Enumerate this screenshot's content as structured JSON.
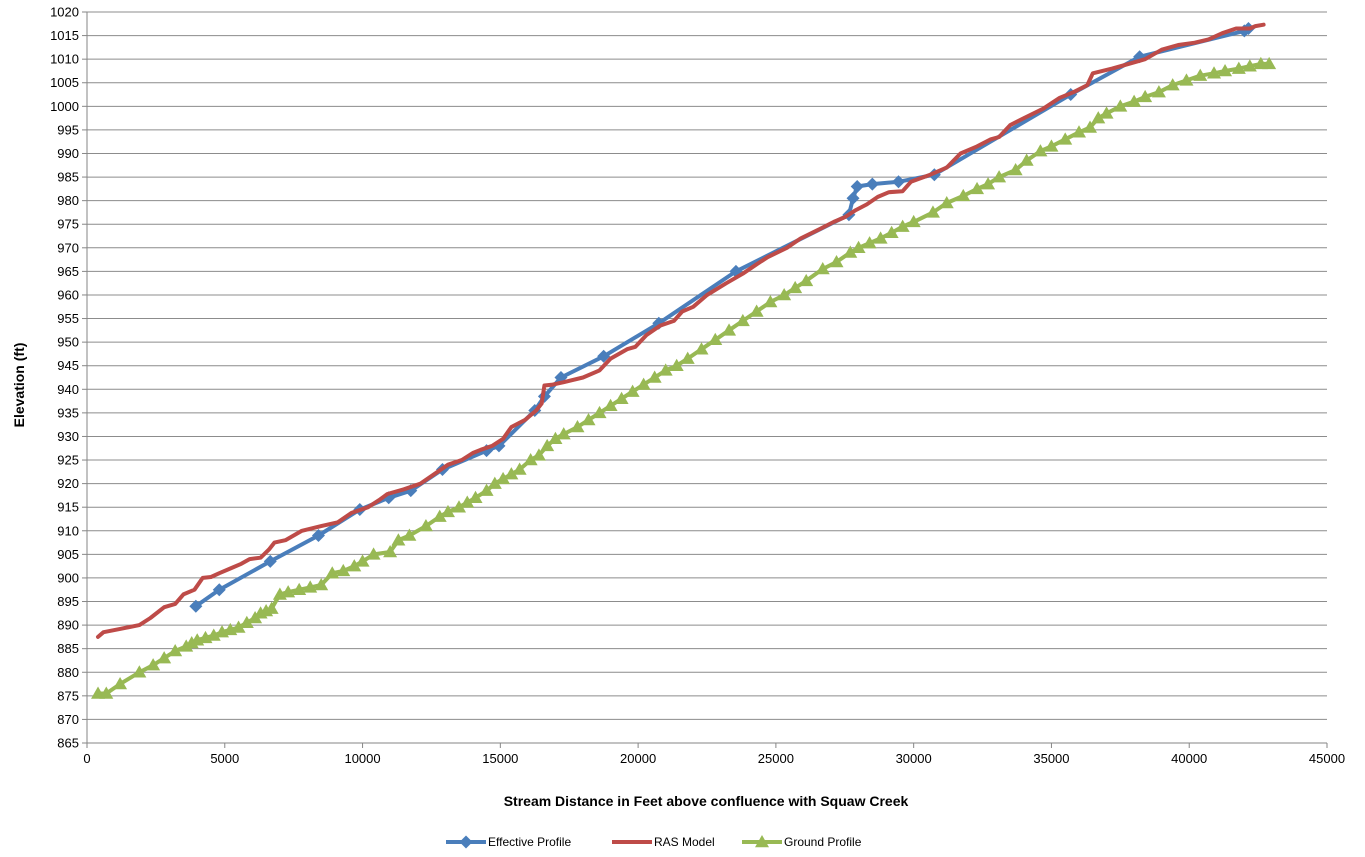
{
  "chart_data": {
    "type": "line",
    "title": "",
    "xlabel": "Stream Distance in Feet above confluence with Squaw Creek",
    "ylabel": "Elevation (ft)",
    "xlim": [
      0,
      45000
    ],
    "ylim": [
      865,
      1020
    ],
    "x_ticks": [
      0,
      5000,
      10000,
      15000,
      20000,
      25000,
      30000,
      35000,
      40000,
      45000
    ],
    "y_ticks": [
      865,
      870,
      875,
      880,
      885,
      890,
      895,
      900,
      905,
      910,
      915,
      920,
      925,
      930,
      935,
      940,
      945,
      950,
      955,
      960,
      965,
      970,
      975,
      980,
      985,
      990,
      995,
      1000,
      1005,
      1010,
      1015,
      1020
    ],
    "grid": "horizontal",
    "legend_position": "bottom",
    "series": [
      {
        "name": "Effective Profile",
        "color": "#4a7ebb",
        "marker": "diamond",
        "points": [
          [
            3950,
            894
          ],
          [
            4800,
            897.5
          ],
          [
            6650,
            903.5
          ],
          [
            8400,
            909
          ],
          [
            9900,
            914.5
          ],
          [
            10950,
            917
          ],
          [
            11750,
            918.5
          ],
          [
            12900,
            923
          ],
          [
            14500,
            927
          ],
          [
            14950,
            928
          ],
          [
            16250,
            935.5
          ],
          [
            16600,
            938.5
          ],
          [
            17200,
            942.5
          ],
          [
            18750,
            947
          ],
          [
            20750,
            954
          ],
          [
            23550,
            965
          ],
          [
            27650,
            977
          ],
          [
            27800,
            980.5
          ],
          [
            27950,
            983
          ],
          [
            28500,
            983.5
          ],
          [
            29450,
            984
          ],
          [
            30750,
            985.5
          ],
          [
            35700,
            1002.5
          ],
          [
            38200,
            1010.5
          ],
          [
            42000,
            1016
          ],
          [
            42150,
            1016.5
          ]
        ]
      },
      {
        "name": "RAS Model",
        "color": "#be4b48",
        "marker": "none",
        "points": [
          [
            400,
            887.5
          ],
          [
            600,
            888.5
          ],
          [
            1200,
            889.2
          ],
          [
            1900,
            890
          ],
          [
            2300,
            891.5
          ],
          [
            2800,
            893.8
          ],
          [
            3200,
            894.5
          ],
          [
            3500,
            896.5
          ],
          [
            3900,
            897.5
          ],
          [
            4200,
            900
          ],
          [
            4500,
            900.2
          ],
          [
            4800,
            901
          ],
          [
            5200,
            902
          ],
          [
            5600,
            903
          ],
          [
            5900,
            904
          ],
          [
            6300,
            904.3
          ],
          [
            6600,
            906
          ],
          [
            6800,
            907.5
          ],
          [
            7200,
            908
          ],
          [
            7800,
            910
          ],
          [
            8500,
            911
          ],
          [
            9100,
            911.8
          ],
          [
            9600,
            913.8
          ],
          [
            10200,
            915
          ],
          [
            10600,
            916.5
          ],
          [
            10900,
            917.8
          ],
          [
            11500,
            918.8
          ],
          [
            12100,
            920
          ],
          [
            12600,
            922
          ],
          [
            13100,
            924
          ],
          [
            13600,
            925
          ],
          [
            14000,
            926.5
          ],
          [
            14300,
            927.2
          ],
          [
            14700,
            928
          ],
          [
            15100,
            929.5
          ],
          [
            15400,
            932
          ],
          [
            15900,
            933.5
          ],
          [
            16300,
            935.5
          ],
          [
            16500,
            937
          ],
          [
            16600,
            940.8
          ],
          [
            16900,
            941
          ],
          [
            17300,
            941.5
          ],
          [
            18000,
            942.5
          ],
          [
            18600,
            944
          ],
          [
            19000,
            946.5
          ],
          [
            19600,
            948.5
          ],
          [
            19900,
            949
          ],
          [
            20300,
            951.5
          ],
          [
            20800,
            953.5
          ],
          [
            21300,
            954.5
          ],
          [
            21600,
            956.5
          ],
          [
            22000,
            957.5
          ],
          [
            22500,
            960
          ],
          [
            23200,
            962.5
          ],
          [
            23800,
            964.5
          ],
          [
            24300,
            966.5
          ],
          [
            24700,
            968
          ],
          [
            25400,
            970
          ],
          [
            25900,
            972
          ],
          [
            26600,
            974
          ],
          [
            27100,
            975.5
          ],
          [
            27500,
            976.5
          ],
          [
            27900,
            978
          ],
          [
            28300,
            979.2
          ],
          [
            28700,
            980.8
          ],
          [
            29100,
            981.8
          ],
          [
            29600,
            982
          ],
          [
            29900,
            984
          ],
          [
            30600,
            985.5
          ],
          [
            31200,
            987
          ],
          [
            31700,
            990
          ],
          [
            32300,
            991.5
          ],
          [
            32800,
            993
          ],
          [
            33100,
            993.5
          ],
          [
            33500,
            996
          ],
          [
            34000,
            997.5
          ],
          [
            34700,
            999.5
          ],
          [
            35300,
            1001.8
          ],
          [
            35800,
            1003
          ],
          [
            36300,
            1004.5
          ],
          [
            36500,
            1007
          ],
          [
            37200,
            1008
          ],
          [
            37800,
            1009
          ],
          [
            38400,
            1010
          ],
          [
            39000,
            1012
          ],
          [
            39600,
            1013
          ],
          [
            40200,
            1013.5
          ],
          [
            40700,
            1014.2
          ],
          [
            41200,
            1015.5
          ],
          [
            41700,
            1016.5
          ],
          [
            42200,
            1016.5
          ],
          [
            42400,
            1017
          ],
          [
            42700,
            1017.3
          ]
        ]
      },
      {
        "name": "Ground Profile",
        "color": "#98b954",
        "marker": "triangle",
        "points": [
          [
            400,
            875.5
          ],
          [
            700,
            875.5
          ],
          [
            1200,
            877.5
          ],
          [
            1900,
            880
          ],
          [
            2400,
            881.5
          ],
          [
            2800,
            883
          ],
          [
            3200,
            884.5
          ],
          [
            3600,
            885.5
          ],
          [
            3800,
            886.2
          ],
          [
            4000,
            886.8
          ],
          [
            4300,
            887.3
          ],
          [
            4600,
            887.8
          ],
          [
            4900,
            888.5
          ],
          [
            5200,
            889
          ],
          [
            5500,
            889.5
          ],
          [
            5800,
            890.5
          ],
          [
            6100,
            891.5
          ],
          [
            6300,
            892.5
          ],
          [
            6500,
            893
          ],
          [
            6700,
            893.5
          ],
          [
            7000,
            896.5
          ],
          [
            7300,
            897
          ],
          [
            7700,
            897.5
          ],
          [
            8100,
            898
          ],
          [
            8500,
            898.5
          ],
          [
            8900,
            901
          ],
          [
            9300,
            901.5
          ],
          [
            9700,
            902.5
          ],
          [
            10000,
            903.5
          ],
          [
            10400,
            905
          ],
          [
            11000,
            905.5
          ],
          [
            11300,
            908
          ],
          [
            11700,
            909
          ],
          [
            12300,
            911
          ],
          [
            12800,
            913
          ],
          [
            13100,
            914
          ],
          [
            13500,
            915
          ],
          [
            13800,
            916
          ],
          [
            14100,
            917
          ],
          [
            14500,
            918.5
          ],
          [
            14800,
            920
          ],
          [
            15100,
            921
          ],
          [
            15400,
            922
          ],
          [
            15700,
            923
          ],
          [
            16100,
            925
          ],
          [
            16400,
            926
          ],
          [
            16700,
            928
          ],
          [
            17000,
            929.5
          ],
          [
            17300,
            930.5
          ],
          [
            17800,
            932
          ],
          [
            18200,
            933.5
          ],
          [
            18600,
            935
          ],
          [
            19000,
            936.5
          ],
          [
            19400,
            938
          ],
          [
            19800,
            939.5
          ],
          [
            20200,
            941
          ],
          [
            20600,
            942.5
          ],
          [
            21000,
            944
          ],
          [
            21400,
            945
          ],
          [
            21800,
            946.5
          ],
          [
            22300,
            948.5
          ],
          [
            22800,
            950.5
          ],
          [
            23300,
            952.5
          ],
          [
            23800,
            954.5
          ],
          [
            24300,
            956.5
          ],
          [
            24800,
            958.5
          ],
          [
            25300,
            960
          ],
          [
            25700,
            961.5
          ],
          [
            26100,
            963
          ],
          [
            26700,
            965.5
          ],
          [
            27200,
            967
          ],
          [
            27700,
            969
          ],
          [
            28000,
            970
          ],
          [
            28400,
            971
          ],
          [
            28800,
            972
          ],
          [
            29200,
            973.2
          ],
          [
            29600,
            974.5
          ],
          [
            30000,
            975.5
          ],
          [
            30700,
            977.5
          ],
          [
            31200,
            979.5
          ],
          [
            31800,
            981
          ],
          [
            32300,
            982.5
          ],
          [
            32700,
            983.5
          ],
          [
            33100,
            985
          ],
          [
            33700,
            986.5
          ],
          [
            34100,
            988.5
          ],
          [
            34600,
            990.5
          ],
          [
            35000,
            991.5
          ],
          [
            35500,
            993
          ],
          [
            36000,
            994.5
          ],
          [
            36400,
            995.5
          ],
          [
            36700,
            997.5
          ],
          [
            37000,
            998.5
          ],
          [
            37500,
            1000
          ],
          [
            38000,
            1001
          ],
          [
            38400,
            1002
          ],
          [
            38900,
            1003
          ],
          [
            39400,
            1004.5
          ],
          [
            39900,
            1005.5
          ],
          [
            40400,
            1006.5
          ],
          [
            40900,
            1007
          ],
          [
            41300,
            1007.5
          ],
          [
            41800,
            1008
          ],
          [
            42200,
            1008.5
          ],
          [
            42600,
            1009
          ],
          [
            42900,
            1009
          ]
        ]
      }
    ]
  }
}
